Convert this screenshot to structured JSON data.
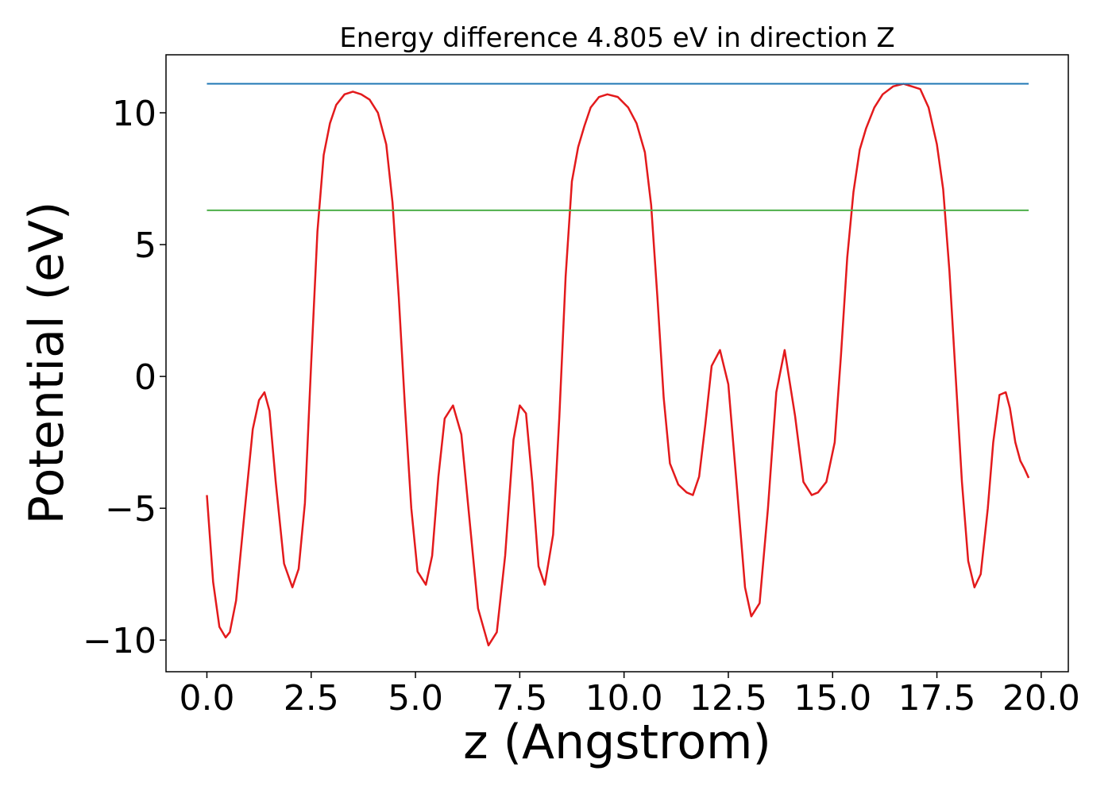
{
  "chart_data": {
    "type": "line",
    "title": "Energy difference 4.805 eV in direction Z",
    "xlabel": "z (Angstrom)",
    "ylabel": "Potential (eV)",
    "xlim": [
      -0.98,
      20.65
    ],
    "ylim": [
      -11.2,
      12.2
    ],
    "xticks": [
      0.0,
      2.5,
      5.0,
      7.5,
      10.0,
      12.5,
      15.0,
      17.5,
      20.0
    ],
    "xtick_labels": [
      "0.0",
      "2.5",
      "5.0",
      "7.5",
      "10.0",
      "12.5",
      "15.0",
      "17.5",
      "20.0"
    ],
    "yticks": [
      -10,
      -5,
      0,
      5,
      10
    ],
    "ytick_labels": [
      "−10",
      "−5",
      "0",
      "5",
      "10"
    ],
    "grid": false,
    "legend": false,
    "series": [
      {
        "color": "#e31a1c",
        "x": [
          0.0,
          0.15,
          0.3,
          0.45,
          0.55,
          0.7,
          0.9,
          1.1,
          1.25,
          1.38,
          1.5,
          1.65,
          1.85,
          2.05,
          2.2,
          2.35,
          2.5,
          2.65,
          2.8,
          2.95,
          3.1,
          3.3,
          3.5,
          3.7,
          3.9,
          4.1,
          4.3,
          4.45,
          4.6,
          4.75,
          4.9,
          5.05,
          5.25,
          5.4,
          5.55,
          5.7,
          5.9,
          6.1,
          6.3,
          6.5,
          6.75,
          6.95,
          7.15,
          7.35,
          7.5,
          7.65,
          7.8,
          7.95,
          8.1,
          8.3,
          8.45,
          8.6,
          8.75,
          8.9,
          9.05,
          9.2,
          9.4,
          9.6,
          9.85,
          10.1,
          10.3,
          10.5,
          10.65,
          10.8,
          10.95,
          11.1,
          11.3,
          11.5,
          11.65,
          11.8,
          11.95,
          12.1,
          12.3,
          12.5,
          12.7,
          12.9,
          13.05,
          13.25,
          13.45,
          13.65,
          13.85,
          14.1,
          14.3,
          14.5,
          14.65,
          14.85,
          15.05,
          15.2,
          15.35,
          15.5,
          15.65,
          15.8,
          16.0,
          16.2,
          16.45,
          16.7,
          16.9,
          17.1,
          17.3,
          17.5,
          17.65,
          17.8,
          17.95,
          18.1,
          18.25,
          18.4,
          18.55,
          18.72,
          18.85,
          19.0,
          19.15,
          19.25,
          19.38,
          19.5,
          19.6,
          19.7
        ],
        "y": [
          -4.5,
          -7.8,
          -9.5,
          -9.9,
          -9.7,
          -8.5,
          -5.2,
          -2.0,
          -0.9,
          -0.6,
          -1.3,
          -4.0,
          -7.1,
          -8.0,
          -7.3,
          -4.8,
          0.5,
          5.5,
          8.4,
          9.6,
          10.3,
          10.7,
          10.8,
          10.7,
          10.5,
          10.0,
          8.8,
          6.6,
          3.0,
          -1.2,
          -5.0,
          -7.4,
          -7.9,
          -6.8,
          -3.8,
          -1.6,
          -1.1,
          -2.2,
          -5.5,
          -8.8,
          -10.2,
          -9.7,
          -6.8,
          -2.4,
          -1.1,
          -1.4,
          -4.0,
          -7.2,
          -7.9,
          -6.0,
          -1.5,
          3.8,
          7.4,
          8.7,
          9.5,
          10.2,
          10.6,
          10.7,
          10.6,
          10.2,
          9.6,
          8.5,
          6.5,
          3.0,
          -0.8,
          -3.3,
          -4.1,
          -4.4,
          -4.5,
          -3.8,
          -1.8,
          0.4,
          1.0,
          -0.3,
          -4.1,
          -8.0,
          -9.1,
          -8.6,
          -5.0,
          -0.6,
          1.0,
          -1.5,
          -4.0,
          -4.5,
          -4.4,
          -4.0,
          -2.5,
          0.8,
          4.5,
          7.0,
          8.6,
          9.4,
          10.2,
          10.7,
          11.0,
          11.1,
          11.0,
          10.9,
          10.2,
          8.8,
          7.1,
          4.0,
          0.0,
          -4.0,
          -7.0,
          -8.0,
          -7.5,
          -5.0,
          -2.5,
          -0.7,
          -0.6,
          -1.2,
          -2.5,
          -3.2,
          -3.5,
          -3.85
        ]
      },
      {
        "color": "#1f77b4",
        "x": [
          0.0,
          19.7
        ],
        "y": [
          11.1,
          11.1
        ]
      },
      {
        "color": "#4daf4a",
        "x": [
          0.0,
          19.7
        ],
        "y": [
          6.3,
          6.3
        ]
      }
    ]
  }
}
